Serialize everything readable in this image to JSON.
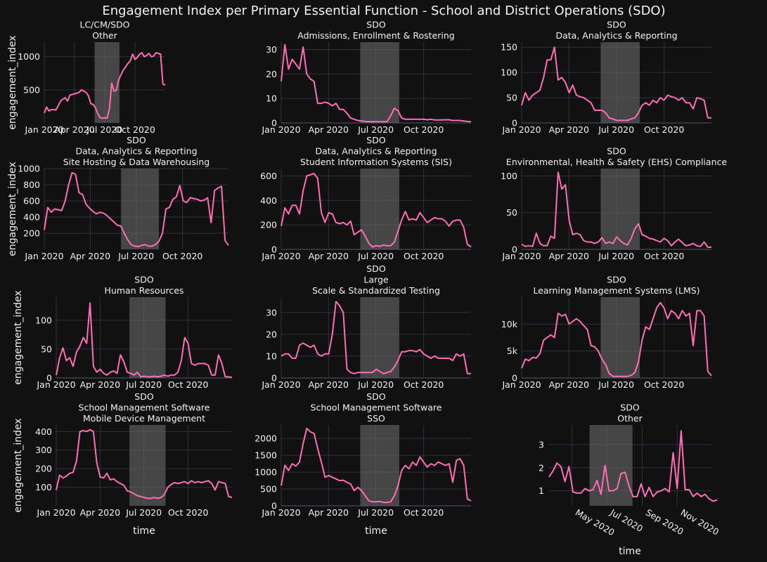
{
  "title": "Engagement Index per Primary Essential Function - School and District Operations (SDO)",
  "colors": {
    "background": "#111111",
    "line": "#ff6eb4",
    "grid": "#2e3240",
    "shade": "#6b6b6b"
  },
  "chart_data": [
    {
      "type": "line",
      "subtitle": [
        "LC/CM/SDO",
        "Other"
      ],
      "ylabel": "engagement_index",
      "xlabel": "",
      "xlim": [
        "2020-01-01",
        "2020-12-31"
      ],
      "xticks": [
        "Jan 2020",
        "Apr 2020",
        "Jul 2020",
        "Oct 2020"
      ],
      "ylim": [
        0,
        1220
      ],
      "yticks": [
        {
          "v": 500,
          "t": "500"
        },
        {
          "v": 1000,
          "t": "1000"
        }
      ],
      "shaded": [
        "2020-06-01",
        "2020-08-15"
      ],
      "y": [
        150,
        240,
        180,
        200,
        200,
        195,
        260,
        330,
        360,
        380,
        330,
        420,
        430,
        440,
        450,
        460,
        500,
        480,
        460,
        410,
        290,
        280,
        230,
        140,
        80,
        70,
        80,
        70,
        210,
        600,
        480,
        490,
        650,
        730,
        800,
        850,
        900,
        940,
        1040,
        960,
        990,
        1040,
        1060,
        1000,
        1020,
        1050,
        1000,
        1010,
        1060,
        1050,
        1040,
        590,
        570
      ]
    },
    {
      "type": "line",
      "subtitle": [
        "SDO",
        "Admissions, Enrollment & Rostering"
      ],
      "ylabel": "",
      "xlabel": "",
      "xlim": [
        "2020-01-01",
        "2020-12-31"
      ],
      "xticks": [
        "Jan 2020",
        "Apr 2020",
        "Jul 2020",
        "Oct 2020"
      ],
      "ylim": [
        0,
        33
      ],
      "yticks": [
        {
          "v": 0,
          "t": "0"
        },
        {
          "v": 10,
          "t": "10"
        },
        {
          "v": 20,
          "t": "20"
        },
        {
          "v": 30,
          "t": "30"
        }
      ],
      "shaded": [
        "2020-06-01",
        "2020-08-15"
      ],
      "y": [
        17,
        32,
        22,
        26,
        24,
        22,
        31,
        20,
        18,
        17,
        8,
        8,
        8.5,
        8,
        7,
        8,
        5.5,
        5.5,
        4,
        2,
        1.5,
        1,
        0.8,
        0.6,
        0.5,
        0.5,
        0.5,
        0.5,
        0.5,
        0.5,
        3,
        6,
        5,
        2,
        1.5,
        1.5,
        1.5,
        1.5,
        1.5,
        1.5,
        1.3,
        1.5,
        1.2,
        1.2,
        1.2,
        1.3,
        1.3,
        1,
        1,
        1,
        0.8,
        0.6,
        0.5
      ]
    },
    {
      "type": "line",
      "subtitle": [
        "SDO",
        "Data, Analytics & Reporting"
      ],
      "ylabel": "",
      "xlabel": "",
      "xlim": [
        "2020-01-01",
        "2020-12-31"
      ],
      "xticks": [
        "Jan 2020",
        "Apr 2020",
        "Jul 2020",
        "Oct 2020"
      ],
      "ylim": [
        0,
        160
      ],
      "yticks": [
        {
          "v": 0,
          "t": "0"
        },
        {
          "v": 50,
          "t": "50"
        },
        {
          "v": 100,
          "t": "100"
        },
        {
          "v": 150,
          "t": "150"
        }
      ],
      "shaded": [
        "2020-06-01",
        "2020-08-15"
      ],
      "y": [
        35,
        60,
        45,
        55,
        60,
        65,
        90,
        125,
        125,
        150,
        85,
        90,
        80,
        60,
        75,
        55,
        52,
        50,
        45,
        40,
        25,
        25,
        25,
        20,
        10,
        8,
        5,
        5,
        5,
        5,
        8,
        10,
        20,
        35,
        40,
        35,
        45,
        40,
        50,
        45,
        55,
        52,
        50,
        45,
        50,
        40,
        40,
        28,
        50,
        48,
        45,
        10,
        10
      ]
    },
    {
      "type": "line",
      "subtitle": [
        "SDO",
        "Data, Analytics & Reporting",
        "Site Hosting & Data Warehousing"
      ],
      "ylabel": "engagement_index",
      "xlabel": "",
      "xlim": [
        "2020-01-01",
        "2020-12-31"
      ],
      "xticks": [
        "Jan 2020",
        "Apr 2020",
        "Jul 2020",
        "Oct 2020"
      ],
      "ylim": [
        0,
        1000
      ],
      "yticks": [
        {
          "v": 200,
          "t": "200"
        },
        {
          "v": 400,
          "t": "400"
        },
        {
          "v": 600,
          "t": "600"
        },
        {
          "v": 800,
          "t": "800"
        },
        {
          "v": 1000,
          "t": "1000"
        }
      ],
      "shaded": [
        "2020-06-01",
        "2020-08-15"
      ],
      "y": [
        240,
        520,
        460,
        500,
        490,
        480,
        600,
        800,
        950,
        930,
        700,
        680,
        560,
        510,
        470,
        440,
        460,
        450,
        420,
        380,
        340,
        300,
        290,
        200,
        120,
        60,
        40,
        35,
        50,
        60,
        40,
        40,
        60,
        100,
        200,
        500,
        520,
        620,
        650,
        790,
        600,
        580,
        640,
        630,
        620,
        600,
        610,
        640,
        330,
        730,
        760,
        780,
        110,
        50
      ]
    },
    {
      "type": "line",
      "subtitle": [
        "SDO",
        "Data, Analytics & Reporting",
        "Student Information Systems (SIS)"
      ],
      "ylabel": "",
      "xlabel": "",
      "xlim": [
        "2020-01-01",
        "2020-12-31"
      ],
      "xticks": [
        "Jan 2020",
        "Apr 2020",
        "Jul 2020",
        "Oct 2020"
      ],
      "ylim": [
        0,
        660
      ],
      "yticks": [
        {
          "v": 0,
          "t": "0"
        },
        {
          "v": 200,
          "t": "200"
        },
        {
          "v": 400,
          "t": "400"
        },
        {
          "v": 600,
          "t": "600"
        }
      ],
      "shaded": [
        "2020-06-01",
        "2020-08-15"
      ],
      "y": [
        190,
        340,
        290,
        360,
        360,
        290,
        480,
        600,
        610,
        620,
        580,
        300,
        220,
        300,
        290,
        220,
        210,
        220,
        200,
        230,
        120,
        140,
        160,
        110,
        50,
        20,
        30,
        25,
        35,
        30,
        30,
        60,
        150,
        240,
        310,
        240,
        250,
        240,
        300,
        260,
        220,
        240,
        260,
        250,
        250,
        230,
        190,
        230,
        240,
        240,
        180,
        40,
        20
      ]
    },
    {
      "type": "line",
      "subtitle": [
        "SDO",
        "Environmental, Health & Safety (EHS) Compliance"
      ],
      "ylabel": "",
      "xlabel": "",
      "xlim": [
        "2020-01-01",
        "2020-12-31"
      ],
      "xticks": [
        "Jan 2020",
        "Apr 2020",
        "Jul 2020",
        "Oct 2020"
      ],
      "ylim": [
        0,
        110
      ],
      "yticks": [
        {
          "v": 0,
          "t": "0"
        },
        {
          "v": 50,
          "t": "50"
        },
        {
          "v": 100,
          "t": "100"
        }
      ],
      "shaded": [
        "2020-06-01",
        "2020-08-15"
      ],
      "y": [
        7,
        4,
        5,
        4,
        22,
        8,
        5,
        5,
        18,
        15,
        105,
        82,
        88,
        40,
        20,
        22,
        20,
        12,
        10,
        10,
        8,
        10,
        16,
        8,
        10,
        8,
        17,
        12,
        8,
        6,
        15,
        28,
        35,
        20,
        18,
        15,
        14,
        12,
        10,
        15,
        12,
        5,
        10,
        14,
        9,
        5,
        6,
        8,
        5,
        4,
        10,
        3,
        3
      ]
    },
    {
      "type": "line",
      "subtitle": [
        "SDO",
        "Human Resources"
      ],
      "ylabel": "engagement_index",
      "xlabel": "",
      "xlim": [
        "2020-01-01",
        "2020-12-31"
      ],
      "xticks": [
        "Jan 2020",
        "Apr 2020",
        "Jul 2020",
        "Oct 2020"
      ],
      "ylim": [
        0,
        140
      ],
      "yticks": [
        {
          "v": 0,
          "t": "0"
        },
        {
          "v": 50,
          "t": "50"
        },
        {
          "v": 100,
          "t": "100"
        }
      ],
      "shaded": [
        "2020-06-01",
        "2020-08-15"
      ],
      "y": [
        5,
        35,
        52,
        30,
        35,
        20,
        45,
        55,
        70,
        60,
        130,
        20,
        10,
        15,
        8,
        5,
        10,
        12,
        8,
        40,
        28,
        10,
        8,
        5,
        10,
        2,
        3,
        2,
        2,
        3,
        2,
        3,
        5,
        3,
        5,
        5,
        10,
        30,
        70,
        60,
        25,
        22,
        25,
        25,
        25,
        22,
        5,
        5,
        40,
        25,
        2,
        2,
        1
      ]
    },
    {
      "type": "line",
      "subtitle": [
        "SDO",
        "Large",
        "Scale & Standardized Testing"
      ],
      "ylabel": "",
      "xlabel": "",
      "xlim": [
        "2020-01-01",
        "2020-12-31"
      ],
      "xticks": [
        "Jan 2020",
        "Apr 2020",
        "Jul 2020",
        "Oct 2020"
      ],
      "ylim": [
        0,
        37
      ],
      "yticks": [
        {
          "v": 0,
          "t": "0"
        },
        {
          "v": 10,
          "t": "10"
        },
        {
          "v": 20,
          "t": "20"
        },
        {
          "v": 30,
          "t": "30"
        }
      ],
      "shaded": [
        "2020-06-01",
        "2020-08-15"
      ],
      "y": [
        10,
        11,
        11,
        9,
        9,
        15,
        16,
        15,
        14,
        15,
        11,
        10,
        11,
        11,
        20,
        35,
        33,
        30,
        4,
        2.5,
        2,
        2.5,
        2.5,
        2.5,
        2.5,
        2.5,
        4,
        3,
        2,
        2.5,
        3,
        5,
        8,
        12,
        12,
        12.5,
        12.5,
        12,
        13,
        11,
        10,
        9,
        10,
        9,
        9,
        9,
        9,
        8,
        11,
        10,
        11,
        2,
        2
      ]
    },
    {
      "type": "line",
      "subtitle": [
        "SDO",
        "Learning Management Systems (LMS)"
      ],
      "ylabel": "",
      "xlabel": "",
      "xlim": [
        "2020-01-01",
        "2020-12-31"
      ],
      "xticks": [
        "Jan 2020",
        "Apr 2020",
        "Jul 2020",
        "Oct 2020"
      ],
      "ylim": [
        0,
        15000
      ],
      "yticks": [
        {
          "v": 0,
          "t": "0"
        },
        {
          "v": 5000,
          "t": "5k"
        },
        {
          "v": 10000,
          "t": "10k"
        }
      ],
      "shaded": [
        "2020-06-01",
        "2020-08-15"
      ],
      "y": [
        1800,
        3500,
        3200,
        3800,
        3700,
        4500,
        7000,
        7500,
        8000,
        7500,
        12000,
        11500,
        11800,
        10000,
        10500,
        11000,
        10500,
        9700,
        9000,
        6000,
        5800,
        5000,
        3500,
        2500,
        800,
        300,
        300,
        300,
        300,
        300,
        500,
        1000,
        3000,
        7000,
        9500,
        9000,
        11000,
        13000,
        14000,
        13000,
        11000,
        12500,
        12000,
        11000,
        12500,
        11500,
        12000,
        6000,
        12500,
        12500,
        11500,
        1200,
        400
      ]
    },
    {
      "type": "line",
      "subtitle": [
        "SDO",
        "School Management Software",
        "Mobile Device Management"
      ],
      "ylabel": "engagement_index",
      "xlabel": "time",
      "xlim": [
        "2020-01-01",
        "2020-12-31"
      ],
      "xticks": [
        "Jan 2020",
        "Apr 2020",
        "Jul 2020",
        "Oct 2020"
      ],
      "ylim": [
        0,
        435
      ],
      "yticks": [
        {
          "v": 100,
          "t": "100"
        },
        {
          "v": 200,
          "t": "200"
        },
        {
          "v": 300,
          "t": "300"
        },
        {
          "v": 400,
          "t": "400"
        }
      ],
      "shaded": [
        "2020-06-01",
        "2020-08-15"
      ],
      "y": [
        85,
        165,
        150,
        160,
        175,
        180,
        240,
        400,
        405,
        400,
        410,
        400,
        230,
        155,
        150,
        175,
        140,
        145,
        130,
        120,
        110,
        80,
        75,
        65,
        55,
        50,
        45,
        40,
        40,
        45,
        40,
        45,
        60,
        100,
        115,
        125,
        120,
        125,
        130,
        120,
        135,
        125,
        130,
        125,
        130,
        135,
        120,
        85,
        130,
        125,
        120,
        50,
        45
      ]
    },
    {
      "type": "line",
      "subtitle": [
        "SDO",
        "School Management Software",
        "SSO"
      ],
      "ylabel": "",
      "xlabel": "time",
      "xlim": [
        "2020-01-01",
        "2020-12-31"
      ],
      "xticks": [
        "Jan 2020",
        "Apr 2020",
        "Jul 2020",
        "Oct 2020"
      ],
      "ylim": [
        0,
        2400
      ],
      "yticks": [
        {
          "v": 0,
          "t": "0"
        },
        {
          "v": 500,
          "t": "500"
        },
        {
          "v": 1000,
          "t": "1000"
        },
        {
          "v": 1500,
          "t": "1500"
        },
        {
          "v": 2000,
          "t": "2000"
        }
      ],
      "shaded": [
        "2020-06-01",
        "2020-08-15"
      ],
      "y": [
        600,
        1200,
        1050,
        1250,
        1180,
        1300,
        1850,
        2300,
        2200,
        2150,
        1700,
        1300,
        850,
        900,
        850,
        800,
        750,
        760,
        700,
        650,
        450,
        550,
        450,
        300,
        150,
        120,
        120,
        130,
        100,
        100,
        120,
        300,
        600,
        1050,
        1200,
        1100,
        1300,
        1200,
        1450,
        1300,
        1150,
        1250,
        1200,
        1300,
        1250,
        1200,
        1250,
        700,
        1350,
        1400,
        1200,
        200,
        150
      ]
    },
    {
      "type": "line",
      "subtitle": [
        "SDO",
        "Other"
      ],
      "ylabel": "",
      "xlabel": "time",
      "xlim": [
        "2020-03-21",
        "2020-12-31"
      ],
      "xticks": [
        "May 2020",
        "Jul 2020",
        "Sep 2020",
        "Nov 2020"
      ],
      "ylim": [
        0.35,
        3.85
      ],
      "yticks": [
        {
          "v": 1,
          "t": "1"
        },
        {
          "v": 2,
          "t": "2"
        },
        {
          "v": 3,
          "t": "3"
        }
      ],
      "shaded": [
        "2020-06-01",
        "2020-08-15"
      ],
      "points": [
        [
          "2020-03-22",
          1.6
        ],
        [
          "2020-03-29",
          1.85
        ],
        [
          "2020-04-05",
          2.2
        ],
        [
          "2020-04-12",
          2.05
        ],
        [
          "2020-04-19",
          1.4
        ],
        [
          "2020-04-26",
          2.05
        ],
        [
          "2020-05-03",
          0.95
        ],
        [
          "2020-05-10",
          0.9
        ],
        [
          "2020-05-17",
          0.9
        ],
        [
          "2020-05-24",
          1.1
        ],
        [
          "2020-05-31",
          1.0
        ],
        [
          "2020-06-07",
          1.05
        ],
        [
          "2020-06-14",
          1.45
        ],
        [
          "2020-06-21",
          0.85
        ],
        [
          "2020-06-28",
          2.1
        ],
        [
          "2020-07-05",
          1.0
        ],
        [
          "2020-07-12",
          1.0
        ],
        [
          "2020-07-19",
          1.1
        ],
        [
          "2020-07-26",
          1.75
        ],
        [
          "2020-08-02",
          1.8
        ],
        [
          "2020-08-09",
          1.2
        ],
        [
          "2020-08-16",
          0.75
        ],
        [
          "2020-08-23",
          0.75
        ],
        [
          "2020-08-30",
          1.3
        ],
        [
          "2020-09-06",
          0.75
        ],
        [
          "2020-09-13",
          1.15
        ],
        [
          "2020-09-20",
          0.75
        ],
        [
          "2020-09-27",
          0.95
        ],
        [
          "2020-10-04",
          1.0
        ],
        [
          "2020-10-11",
          1.1
        ],
        [
          "2020-10-18",
          0.95
        ],
        [
          "2020-10-25",
          2.65
        ],
        [
          "2020-11-01",
          1.1
        ],
        [
          "2020-11-08",
          3.6
        ],
        [
          "2020-11-15",
          1.05
        ],
        [
          "2020-11-22",
          1.05
        ],
        [
          "2020-11-29",
          0.75
        ],
        [
          "2020-12-06",
          0.9
        ],
        [
          "2020-12-13",
          0.75
        ],
        [
          "2020-12-20",
          0.85
        ],
        [
          "2020-12-27",
          0.65
        ],
        [
          "2021-01-03",
          0.55
        ],
        [
          "2021-01-10",
          0.6
        ]
      ]
    }
  ]
}
